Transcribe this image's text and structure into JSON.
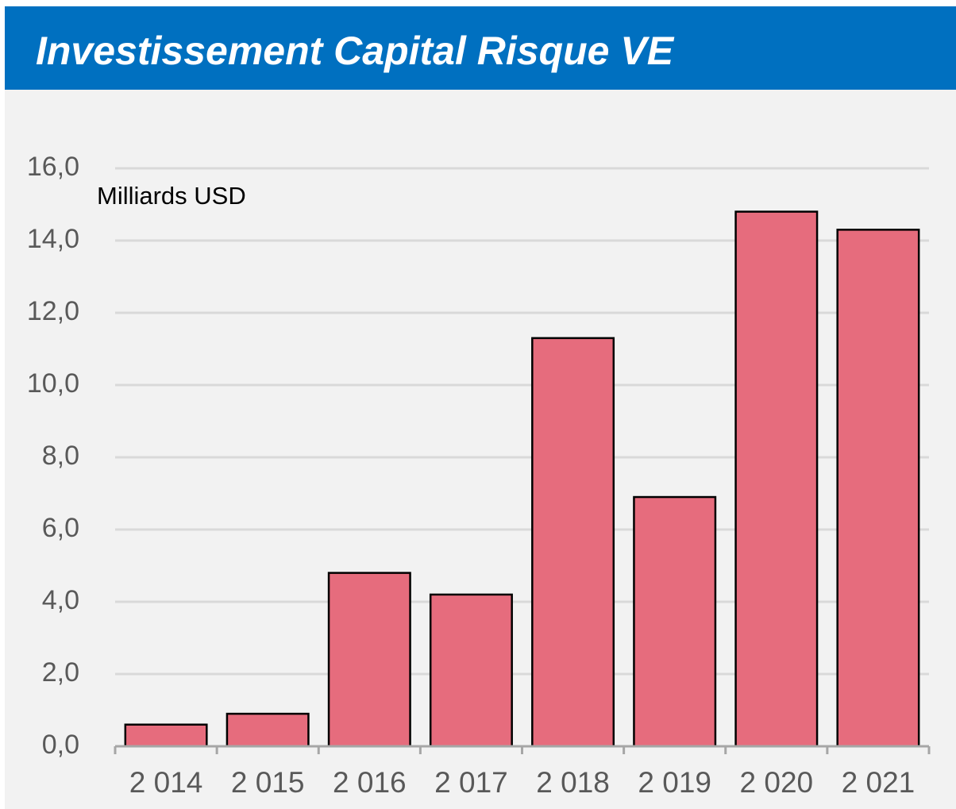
{
  "chart_data": {
    "type": "bar",
    "title": "Investissement Capital Risque VE",
    "annotation": "Milliards USD",
    "categories": [
      "2 014",
      "2 015",
      "2 016",
      "2 017",
      "2 018",
      "2 019",
      "2 020",
      "2 021"
    ],
    "values": [
      0.6,
      0.9,
      4.8,
      4.2,
      11.3,
      6.9,
      14.8,
      14.3
    ],
    "color": "#e66c7d",
    "ylim": [
      0,
      16
    ],
    "yticks": [
      {
        "value": 0,
        "label": "0,0"
      },
      {
        "value": 2,
        "label": "2,0"
      },
      {
        "value": 4,
        "label": "4,0"
      },
      {
        "value": 6,
        "label": "6,0"
      },
      {
        "value": 8,
        "label": "8,0"
      },
      {
        "value": 10,
        "label": "10,0"
      },
      {
        "value": 12,
        "label": "12,0"
      },
      {
        "value": 14,
        "label": "14,0"
      },
      {
        "value": 16,
        "label": "16,0"
      }
    ],
    "grid": true
  }
}
